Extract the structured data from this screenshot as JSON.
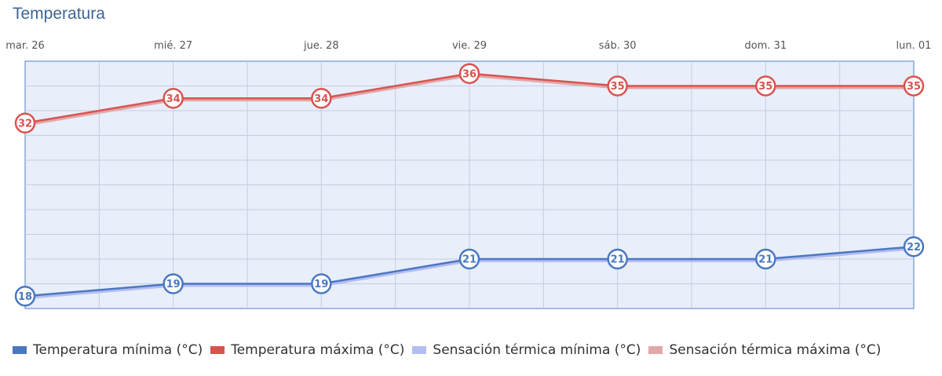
{
  "title": "Temperatura",
  "colors": {
    "min": "#4a78c0",
    "max": "#d9534f",
    "feel_min": "#b3bdf0",
    "feel_max": "#e0a8a8",
    "plot_bg": "#e8eefa",
    "grid": "#c5cde0",
    "border": "#8aa6d8"
  },
  "chart_data": {
    "type": "line",
    "title": "Temperatura",
    "categories": [
      "mar. 26",
      "mié. 27",
      "jue. 28",
      "vie. 29",
      "sáb. 30",
      "dom. 31",
      "lun. 01"
    ],
    "ylim": [
      17,
      37
    ],
    "grid": true,
    "legend_position": "bottom-left",
    "series": [
      {
        "name": "Temperatura mínima (°C)",
        "values": [
          18,
          19,
          19,
          21,
          21,
          21,
          22
        ],
        "color": "#4a78c0",
        "labeled": true
      },
      {
        "name": "Temperatura máxima (°C)",
        "values": [
          32,
          34,
          34,
          36,
          35,
          35,
          35
        ],
        "color": "#d9534f",
        "labeled": true
      },
      {
        "name": "Sensación térmica mínima (°C)",
        "values": [
          18,
          19,
          19,
          21,
          21,
          21,
          22
        ],
        "color": "#b3bdf0",
        "labeled": false
      },
      {
        "name": "Sensación térmica máxima (°C)",
        "values": [
          32,
          34,
          34,
          36,
          35,
          35,
          35
        ],
        "color": "#e0a8a8",
        "labeled": false
      }
    ]
  }
}
